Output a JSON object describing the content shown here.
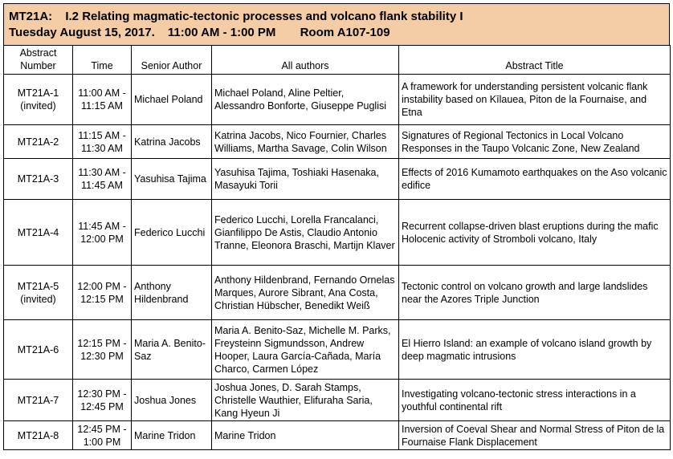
{
  "header": {
    "code": "MT21A:",
    "title": "I.2 Relating magmatic-tectonic processes and volcano flank stability I",
    "date": "Tuesday August 15, 2017.",
    "time": "11:00 AM - 1:00 PM",
    "room": "Room A107-109"
  },
  "columns": {
    "number_line1": "Abstract",
    "number_line2": "Number",
    "time": "Time",
    "author": "Senior Author",
    "all_authors": "All authors",
    "title": "Abstract Title"
  },
  "rows": [
    {
      "num1": "MT21A-1",
      "num2": "(invited)",
      "t1": "11:00 AM -",
      "t2": "11:15 AM",
      "author": "Michael Poland",
      "all": "Michael Poland, Aline Peltier, Alessandro Bonforte, Giuseppe Puglisi",
      "title": "A framework for understanding persistent volcanic flank instability based on Kīlauea, Piton de la Fournaise, and Etna"
    },
    {
      "num1": "MT21A-2",
      "num2": "",
      "t1": "11:15 AM -",
      "t2": "11:30 AM",
      "author": "Katrina Jacobs",
      "all": "Katrina Jacobs, Nico Fournier, Charles Williams, Martha Savage, Colin Wilson",
      "title": "Signatures of Regional Tectonics in Local Volcano Responses in the Taupo Volcanic Zone, New Zealand"
    },
    {
      "num1": "MT21A-3",
      "num2": "",
      "t1": "11:30 AM -",
      "t2": "11:45 AM",
      "author": "Yasuhisa Tajima",
      "all": "Yasuhisa Tajima, Toshiaki Hasenaka, Masayuki Torii",
      "title": "Effects of 2016 Kumamoto earthquakes on the Aso volcanic edifice"
    },
    {
      "num1": "MT21A-4",
      "num2": "",
      "t1": "11:45 AM -",
      "t2": "12:00 PM",
      "author": "Federico Lucchi",
      "all": "Federico Lucchi, Lorella Francalanci, Gianfilippo De Astis, Claudio Antonio Tranne, Eleonora Braschi, Martijn Klaver",
      "title": "Recurrent collapse-driven blast eruptions during the mafic Holocenic activity of Stromboli volcano, Italy"
    },
    {
      "num1": "MT21A-5",
      "num2": "(invited)",
      "t1": "12:00 PM -",
      "t2": "12:15 PM",
      "author": "Anthony Hildenbrand",
      "all": "Anthony Hildenbrand, Fernando Ornelas Marques, Aurore Sibrant, Ana Costa, Christian Hübscher, Benedikt Weiß",
      "title": "Tectonic control on volcano growth and large landslides near the Azores Triple Junction"
    },
    {
      "num1": "MT21A-6",
      "num2": "",
      "t1": "12:15 PM -",
      "t2": "12:30 PM",
      "author": "Maria A. Benito-Saz",
      "all": "Maria A. Benito-Saz, Michelle M. Parks, Freysteinn Sigmundsson, Andrew Hooper, Laura García-Cañada, María Charco, Carmen López",
      "title": "El Hierro Island: an example of volcano island growth by deep magmatic intrusions"
    },
    {
      "num1": "MT21A-7",
      "num2": "",
      "t1": "12:30 PM -",
      "t2": "12:45 PM",
      "author": "Joshua Jones",
      "all": "Joshua Jones, D. Sarah Stamps, Christelle Wauthier, Elifuraha Saria, Kang Hyeun Ji",
      "title": "Investigating volcano-tectonic stress interactions in a youthful continental rift"
    },
    {
      "num1": "MT21A-8",
      "num2": "",
      "t1": "12:45 PM -",
      "t2": "1:00 PM",
      "author": "Marine Tridon",
      "all": "Marine Tridon",
      "title": "Inversion of Coeval Shear and Normal Stress of Piton de la Fournaise Flank Displacement"
    }
  ]
}
